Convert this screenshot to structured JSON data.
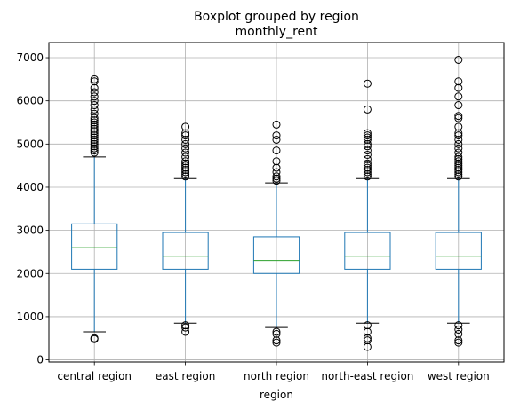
{
  "chart_data": {
    "type": "box",
    "suptitle": "Boxplot grouped by region",
    "title": "monthly_rent",
    "xlabel": "region",
    "ylabel": "",
    "ylim": [
      -50,
      7350
    ],
    "yticks": [
      0,
      1000,
      2000,
      3000,
      4000,
      5000,
      6000,
      7000
    ],
    "grid": true,
    "colors": {
      "box": "#1f77b4",
      "median": "#2ca02c",
      "whisker_cap": "#000000",
      "grid": "#b0b0b0",
      "flier": "#000000"
    },
    "categories": [
      "central region",
      "east region",
      "north region",
      "north-east region",
      "west region"
    ],
    "boxes": [
      {
        "name": "central region",
        "q1": 2100,
        "median": 2600,
        "q3": 3150,
        "whisker_low": 650,
        "whisker_high": 4700,
        "outliers": [
          480,
          500,
          4800,
          4850,
          4900,
          4950,
          5000,
          5050,
          5100,
          5150,
          5200,
          5250,
          5300,
          5350,
          5400,
          5450,
          5500,
          5550,
          5600,
          5700,
          5800,
          5900,
          6000,
          6100,
          6200,
          6300,
          6450,
          6500
        ]
      },
      {
        "name": "east region",
        "q1": 2100,
        "median": 2400,
        "q3": 2950,
        "whisker_low": 850,
        "whisker_high": 4200,
        "outliers": [
          650,
          750,
          800,
          4250,
          4300,
          4350,
          4400,
          4450,
          4500,
          4550,
          4600,
          4700,
          4800,
          4900,
          5000,
          5100,
          5200,
          5250,
          5400
        ]
      },
      {
        "name": "north region",
        "q1": 2000,
        "median": 2300,
        "q3": 2850,
        "whisker_low": 750,
        "whisker_high": 4100,
        "outliers": [
          400,
          450,
          600,
          650,
          4150,
          4200,
          4250,
          4350,
          4450,
          4600,
          4850,
          5100,
          5200,
          5450
        ]
      },
      {
        "name": "north-east region",
        "q1": 2100,
        "median": 2400,
        "q3": 2950,
        "whisker_low": 850,
        "whisker_high": 4200,
        "outliers": [
          300,
          450,
          500,
          650,
          800,
          4250,
          4300,
          4350,
          4400,
          4450,
          4500,
          4550,
          4650,
          4750,
          4850,
          4950,
          5000,
          5100,
          5150,
          5200,
          5250,
          5800,
          6400
        ]
      },
      {
        "name": "west region",
        "q1": 2100,
        "median": 2400,
        "q3": 2950,
        "whisker_low": 850,
        "whisker_high": 4200,
        "outliers": [
          400,
          450,
          600,
          700,
          800,
          4250,
          4300,
          4350,
          4400,
          4450,
          4500,
          4550,
          4600,
          4650,
          4700,
          4800,
          4900,
          5000,
          5100,
          5200,
          5250,
          5400,
          5600,
          5650,
          5900,
          6100,
          6300,
          6450,
          6950
        ]
      }
    ]
  }
}
